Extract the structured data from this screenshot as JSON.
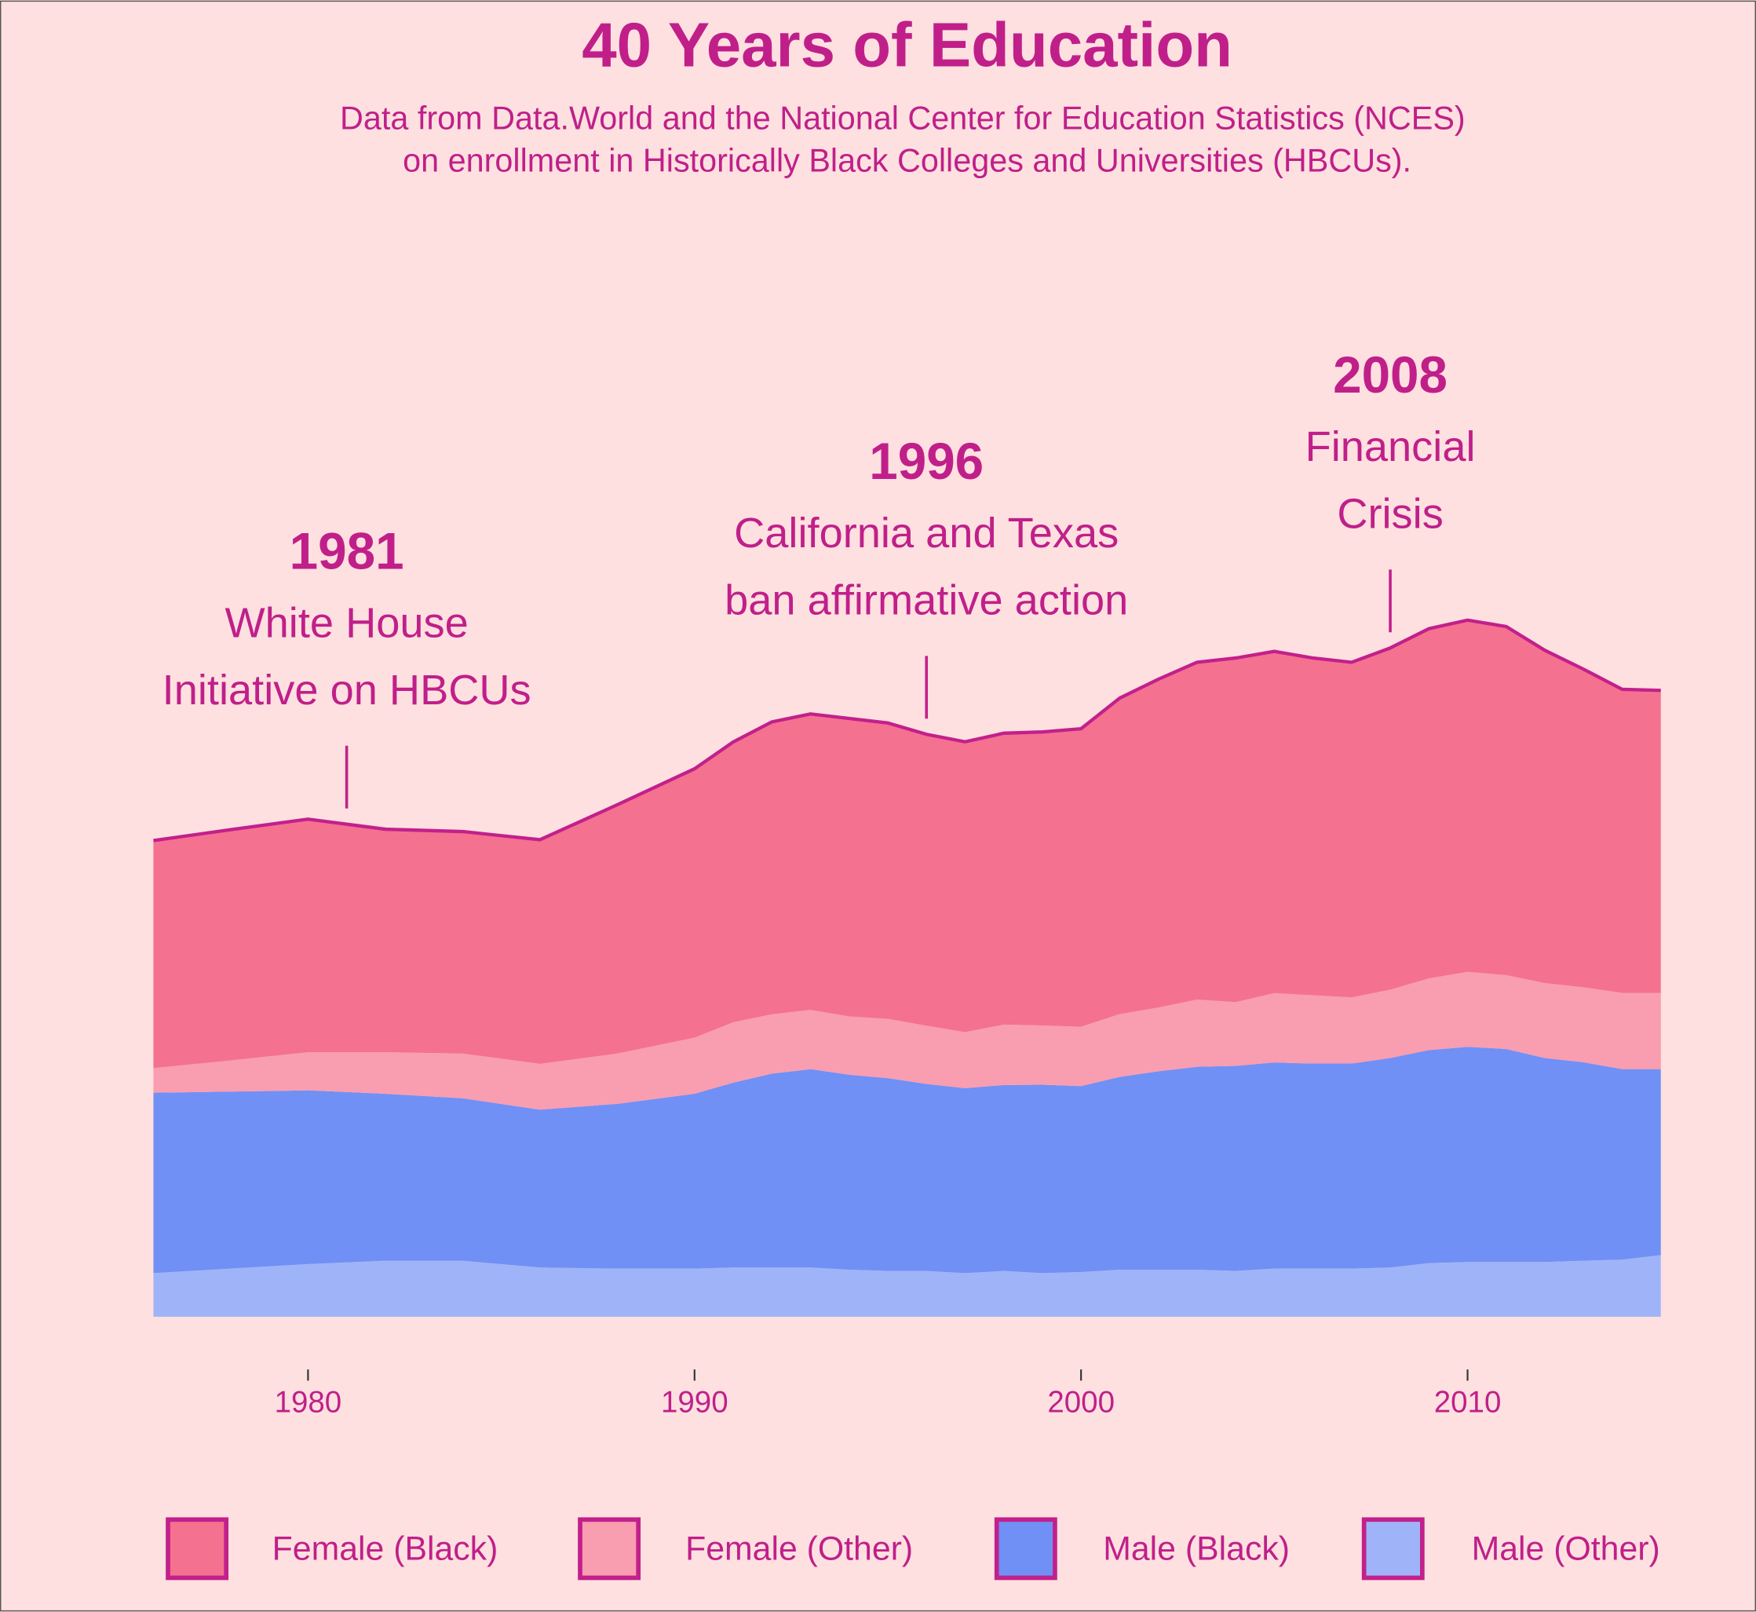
{
  "chart_data": {
    "type": "stacked_area",
    "title": "40 Years of Education",
    "subtitle": [
      "Data from Data.World and the National Center for Education Statistics (NCES)",
      "on enrollment in Historically Black Colleges and Universities (HBCUs)."
    ],
    "x": [
      1976,
      1978,
      1980,
      1982,
      1984,
      1986,
      1988,
      1990,
      1991,
      1992,
      1993,
      1994,
      1995,
      1996,
      1997,
      1998,
      1999,
      2000,
      2001,
      2002,
      2003,
      2004,
      2005,
      2006,
      2007,
      2008,
      2009,
      2010,
      2011,
      2012,
      2013,
      2014,
      2015
    ],
    "xlim": [
      1976,
      2015
    ],
    "xticks": [
      1980,
      1990,
      2000,
      2010
    ],
    "ylim": [
      0,
      400
    ],
    "outline_color": "#c2208c",
    "series": [
      {
        "name": "Female (Black)",
        "color": "#f47190",
        "values": [
          106.2,
          107.7,
          108.8,
          104.1,
          103.6,
          104.6,
          116.1,
          125.5,
          130.8,
          136.5,
          138.1,
          139.1,
          138.1,
          136.0,
          135.5,
          136.0,
          137.0,
          139.1,
          147.5,
          153.2,
          157.4,
          160.6,
          159.5,
          157.4,
          156.4,
          159.5,
          163.2,
          164.2,
          162.7,
          155.3,
          148.5,
          141.7,
          141.2
        ]
      },
      {
        "name": "Female (Other)",
        "color": "#f99db1",
        "values": [
          11.5,
          14.6,
          17.8,
          19.4,
          20.9,
          21.4,
          23.5,
          26.2,
          28.2,
          27.7,
          27.7,
          27.2,
          27.7,
          27.2,
          26.2,
          28.2,
          27.7,
          27.7,
          29.3,
          29.8,
          31.4,
          29.8,
          32.4,
          31.9,
          30.9,
          31.9,
          33.5,
          35.0,
          34.5,
          35.0,
          35.0,
          35.6,
          35.6
        ]
      },
      {
        "name": "Male (Black)",
        "color": "#7090f5",
        "values": [
          84.2,
          82.6,
          81.1,
          77.9,
          75.8,
          73.7,
          76.9,
          81.6,
          86.3,
          90.5,
          92.6,
          91.0,
          90.0,
          87.3,
          86.3,
          86.8,
          87.9,
          86.8,
          90.0,
          92.6,
          94.7,
          95.7,
          96.2,
          95.7,
          95.7,
          97.8,
          99.4,
          100.4,
          99.4,
          95.2,
          92.6,
          88.9,
          86.8
        ]
      },
      {
        "name": "Male (Other)",
        "color": "#9fb4f8",
        "values": [
          20.4,
          22.5,
          24.6,
          26.2,
          26.2,
          23.0,
          22.5,
          22.5,
          23.0,
          23.0,
          23.0,
          22.0,
          21.4,
          21.4,
          20.4,
          21.4,
          20.4,
          20.9,
          22.0,
          22.0,
          22.0,
          21.4,
          22.5,
          22.5,
          22.5,
          23.0,
          25.1,
          25.6,
          25.6,
          25.6,
          26.2,
          26.7,
          28.8
        ]
      }
    ],
    "annotations": [
      {
        "x": 1981,
        "text": [
          "White House",
          "Initiative on HBCUs"
        ]
      },
      {
        "x": 1996,
        "text": [
          "California and Texas",
          "ban affirmative action"
        ]
      },
      {
        "x": 2008,
        "text": [
          "Financial",
          "Crisis"
        ]
      }
    ]
  }
}
